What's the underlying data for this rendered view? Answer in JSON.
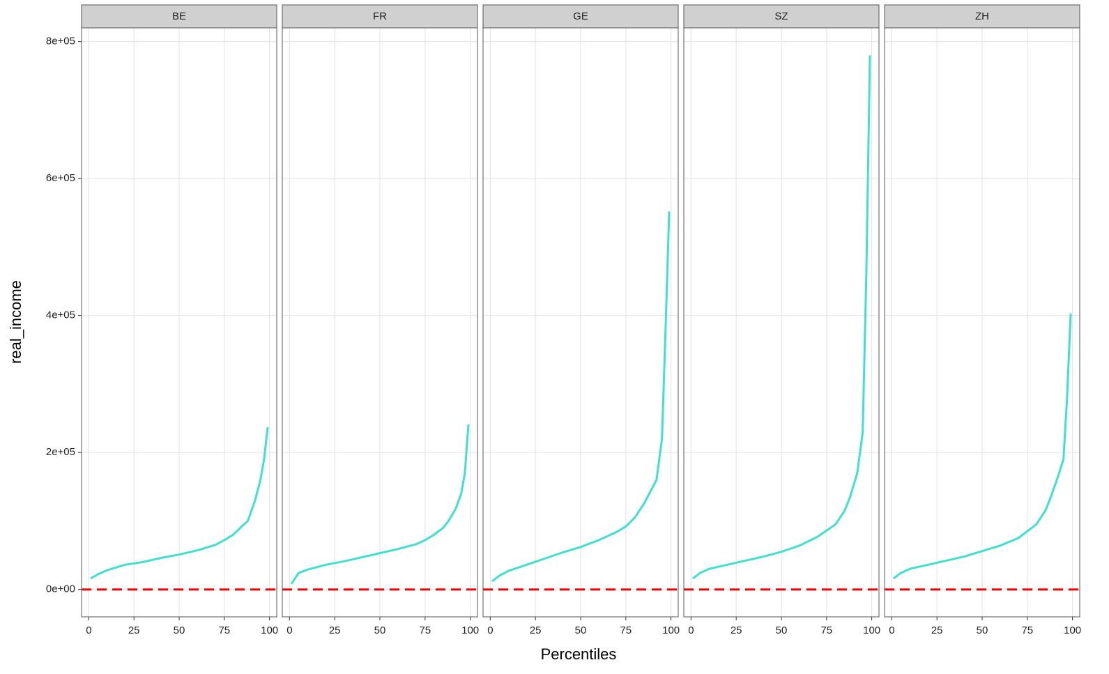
{
  "chart_data": {
    "type": "line",
    "xlabel": "Percentiles",
    "ylabel": "real_income",
    "xlim": [
      -4,
      104
    ],
    "ylim": [
      -40000,
      820000
    ],
    "xticks": [
      0,
      25,
      50,
      75,
      100
    ],
    "yticks": [
      {
        "value": 0,
        "label": "0e+00"
      },
      {
        "value": 200000,
        "label": "2e+05"
      },
      {
        "value": 400000,
        "label": "4e+05"
      },
      {
        "value": 600000,
        "label": "6e+05"
      },
      {
        "value": 800000,
        "label": "8e+05"
      }
    ],
    "grid": true,
    "color": "#40e0d0",
    "hline": 0,
    "hline_color": "#ff0000",
    "facets": [
      {
        "title": "BE",
        "x": [
          1,
          5,
          10,
          20,
          30,
          40,
          50,
          60,
          70,
          75,
          80,
          85,
          88,
          92,
          95,
          97,
          99
        ],
        "values": [
          16000,
          22000,
          28000,
          36000,
          40000,
          46000,
          51000,
          57000,
          65000,
          72000,
          80000,
          93000,
          100000,
          130000,
          160000,
          190000,
          237000
        ]
      },
      {
        "title": "FR",
        "x": [
          1,
          5,
          10,
          20,
          30,
          40,
          50,
          60,
          70,
          75,
          80,
          85,
          88,
          92,
          95,
          97,
          99
        ],
        "values": [
          8000,
          24000,
          29000,
          36000,
          41000,
          47000,
          53000,
          59000,
          66000,
          72000,
          80000,
          90000,
          100000,
          118000,
          140000,
          170000,
          241000
        ]
      },
      {
        "title": "GE",
        "x": [
          1,
          5,
          10,
          20,
          30,
          40,
          50,
          60,
          70,
          75,
          80,
          85,
          88,
          92,
          95,
          97,
          99
        ],
        "values": [
          12000,
          20000,
          27000,
          36000,
          45000,
          54000,
          62000,
          72000,
          84000,
          92000,
          105000,
          125000,
          140000,
          160000,
          220000,
          380000,
          552000
        ]
      },
      {
        "title": "SZ",
        "x": [
          1,
          5,
          10,
          20,
          30,
          40,
          50,
          60,
          70,
          75,
          80,
          85,
          88,
          92,
          95,
          97,
          99
        ],
        "values": [
          16000,
          24000,
          30000,
          36000,
          42000,
          48000,
          55000,
          64000,
          77000,
          86000,
          95000,
          115000,
          135000,
          170000,
          230000,
          460000,
          780000
        ]
      },
      {
        "title": "ZH",
        "x": [
          1,
          5,
          10,
          20,
          30,
          40,
          50,
          60,
          70,
          75,
          80,
          85,
          88,
          92,
          95,
          97,
          99
        ],
        "values": [
          16000,
          24000,
          30000,
          36000,
          42000,
          48000,
          56000,
          64000,
          75000,
          85000,
          95000,
          115000,
          135000,
          165000,
          190000,
          280000,
          403000
        ]
      }
    ]
  }
}
